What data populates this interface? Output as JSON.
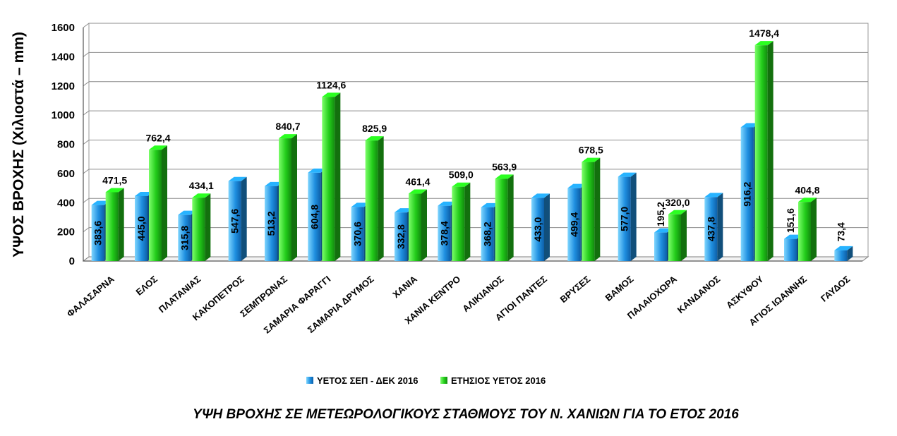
{
  "chart_data": {
    "type": "bar",
    "title": "ΥΨΗ ΒΡΟΧΗΣ ΣΕ ΜΕΤΕΩΡΟΛΟΓΙΚΟΥΣ ΣΤΑΘΜΟΥΣ ΤΟΥ Ν. ΧΑΝΙΩΝ ΓΙΑ ΤΟ ΕΤΟΣ 2016",
    "xlabel": "",
    "ylabel": "ΥΨΟΣ ΒΡΟΧΗΣ (Χιλιοστά – mm)",
    "ylim": [
      0,
      1600
    ],
    "yticks": [
      "0",
      "200",
      "400",
      "600",
      "800",
      "1000",
      "1200",
      "1400",
      "1600"
    ],
    "grid": true,
    "legend_position": "bottom",
    "categories": [
      "ΦΑΛΑΣΑΡΝΑ",
      "ΕΛΟΣ",
      "ΠΛΑΤΑΝΙΑΣ",
      "ΚΑΚΟΠΕΤΡΟΣ",
      "ΣΕΜΠΡΩΝΑΣ",
      "ΣΑΜΑΡΙΑ ΦΑΡΑΓΓΙ",
      "ΣΑΜΑΡΙΑ ΔΡΥΜΟΣ",
      "ΧΑΝΙΑ",
      "ΧΑΝΙΑ ΚΕΝΤΡΟ",
      "ΑΛΙΚΙΑΝΟΣ",
      "ΑΓΙΟΙ ΠΑΝΤΕΣ",
      "ΒΡΥΣΕΣ",
      "ΒΑΜΟΣ",
      "ΠΑΛΑΙΟΧΩΡΑ",
      "ΚΑΝΔΑΝΟΣ",
      "ΑΣΚΥΦΟΥ",
      "ΑΓΙΟΣ ΙΩΑΝΝΗΣ",
      "ΓΑΥΔΟΣ"
    ],
    "series": [
      {
        "name": "ΥΕΤΟΣ ΣΕΠ - ΔΕΚ 2016",
        "color": "#1f8fe0",
        "values": [
          383.6,
          445.0,
          315.8,
          547.6,
          513.2,
          604.8,
          370.6,
          332.8,
          378.4,
          368.2,
          433.0,
          499.4,
          577.0,
          195.2,
          437.8,
          916.2,
          151.6,
          73.4
        ],
        "labels": [
          "383,6",
          "445,0",
          "315,8",
          "547,6",
          "513,2",
          "604,8",
          "370,6",
          "332,8",
          "378,4",
          "368,2",
          "433,0",
          "499,4",
          "577,0",
          "195,2",
          "437,8",
          "916,2",
          "151,6",
          "73,4"
        ]
      },
      {
        "name": "ΕΤΗΣΙΟΣ ΥΕΤΟΣ 2016",
        "color": "#22cc1a",
        "values": [
          471.5,
          762.4,
          434.1,
          null,
          840.7,
          1124.6,
          825.9,
          461.4,
          509.0,
          563.9,
          null,
          678.5,
          null,
          320.0,
          null,
          1478.4,
          404.8,
          null
        ],
        "labels": [
          "471,5",
          "762,4",
          "434,1",
          null,
          "840,7",
          "1124,6",
          "825,9",
          "461,4",
          "509,0",
          "563,9",
          null,
          "678,5",
          null,
          "320,0",
          null,
          "1478,4",
          "404,8",
          null
        ]
      }
    ]
  }
}
